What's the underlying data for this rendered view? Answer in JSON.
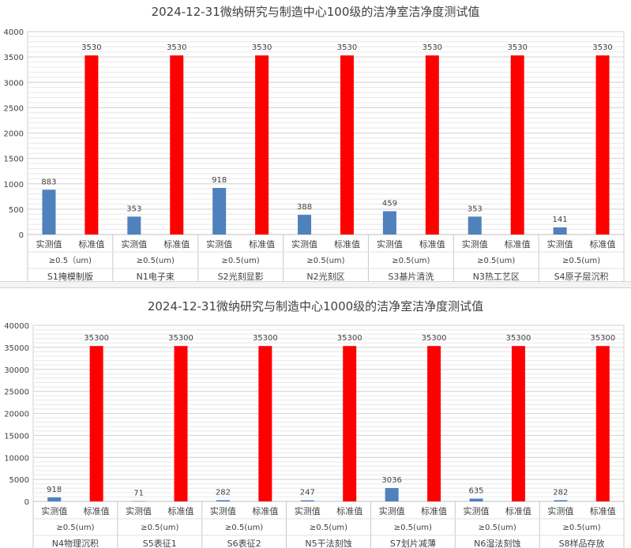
{
  "chart_data": [
    {
      "type": "bar",
      "title": "2024-12-31微纳研究与制造中心100级的洁净室洁净度测试值",
      "groups": [
        {
          "area": "S1掩模制版",
          "particle": "≥0.5（um)"
        },
        {
          "area": "N1电子束",
          "particle": "≥0.5(um)"
        },
        {
          "area": "S2光刻显影",
          "particle": "≥0.5(um)"
        },
        {
          "area": "N2光刻区",
          "particle": "≥0.5(um)"
        },
        {
          "area": "S3基片清洗",
          "particle": "≥0.5(um)"
        },
        {
          "area": "N3热工艺区",
          "particle": "≥0.5(um)"
        },
        {
          "area": "S4原子层沉积",
          "particle": "≥0.5(um)"
        }
      ],
      "series": [
        {
          "name": "实测值",
          "color": "#4f81bd",
          "values": [
            883,
            353,
            918,
            388,
            459,
            353,
            141
          ]
        },
        {
          "name": "标准值",
          "color": "#ff0000",
          "values": [
            3530,
            3530,
            3530,
            3530,
            3530,
            3530,
            3530
          ]
        }
      ],
      "ylim": [
        0,
        4000
      ],
      "yticks": [
        0,
        500,
        1000,
        1500,
        2000,
        2500,
        3000,
        3500,
        4000
      ],
      "grid": true
    },
    {
      "type": "bar",
      "title": "2024-12-31微纳研究与制造中心1000级的洁净室洁净度测试值",
      "groups": [
        {
          "area": "N4物理沉积",
          "particle": "≥0.5(um)"
        },
        {
          "area": "S5表征1",
          "particle": "≥0.5(um)"
        },
        {
          "area": "S6表征2",
          "particle": "≥0.5(um)"
        },
        {
          "area": "N5干法刻蚀",
          "particle": "≥0.5(um)"
        },
        {
          "area": "S7划片减薄",
          "particle": "≥0.5(um)"
        },
        {
          "area": "N6湿法刻蚀",
          "particle": "≥0.5(um)"
        },
        {
          "area": "S8样品存放",
          "particle": "≥0.5(um)"
        }
      ],
      "series": [
        {
          "name": "实测值",
          "color": "#4f81bd",
          "values": [
            918,
            71,
            282,
            247,
            3036,
            635,
            282
          ]
        },
        {
          "name": "标准值",
          "color": "#ff0000",
          "values": [
            35300,
            35300,
            35300,
            35300,
            35300,
            35300,
            35300
          ]
        }
      ],
      "ylim": [
        0,
        40000
      ],
      "yticks": [
        0,
        5000,
        10000,
        15000,
        20000,
        25000,
        30000,
        35000,
        40000
      ],
      "grid": true
    }
  ]
}
